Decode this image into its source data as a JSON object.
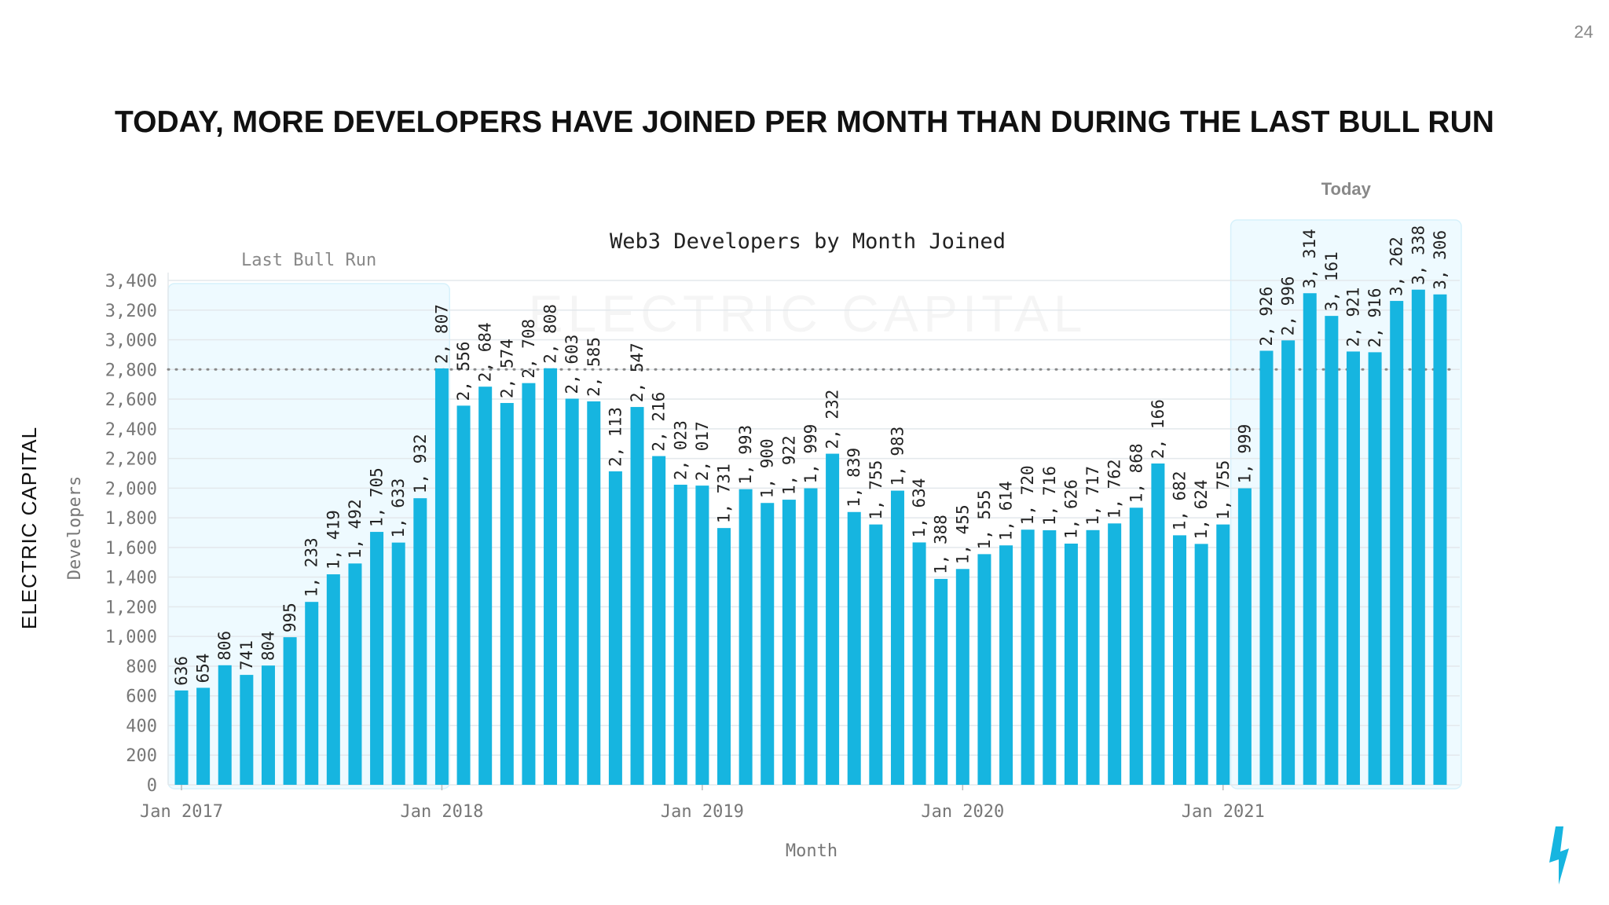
{
  "page_number": "24",
  "headline": "Today, more developers have joined per month than during the last bull run",
  "brand": {
    "logo_text": "ELECTRIC CAPITAL",
    "watermark_text": "ELECTRIC CAPITAL",
    "accent": "#16b5e0",
    "icon": "lightning-bolt-icon"
  },
  "chart_data": {
    "type": "bar",
    "title": "Web3 Developers by Month Joined",
    "xlabel": "Month",
    "ylabel": "Developers",
    "ylim": [
      0,
      3400
    ],
    "yticks": [
      0,
      200,
      400,
      600,
      800,
      1000,
      1200,
      1400,
      1600,
      1800,
      2000,
      2200,
      2400,
      2600,
      2800,
      3000,
      3200,
      3400
    ],
    "xtick_labels": [
      {
        "label": "Jan 2017",
        "index": 0
      },
      {
        "label": "Jan 2018",
        "index": 12
      },
      {
        "label": "Jan 2019",
        "index": 24
      },
      {
        "label": "Jan 2020",
        "index": 36
      },
      {
        "label": "Jan 2021",
        "index": 48
      }
    ],
    "grid": true,
    "bar_color": "#16b5e0",
    "reference_line": {
      "value": 2800,
      "style": "dotted"
    },
    "highlight_regions": [
      {
        "label": "Last Bull Run",
        "start_index": 0,
        "end_index": 12
      },
      {
        "label": "Today",
        "start_index": 49,
        "end_index": 58
      }
    ],
    "categories": [
      "Jan 2017",
      "Feb 2017",
      "Mar 2017",
      "Apr 2017",
      "May 2017",
      "Jun 2017",
      "Jul 2017",
      "Aug 2017",
      "Sep 2017",
      "Oct 2017",
      "Nov 2017",
      "Dec 2017",
      "Jan 2018",
      "Feb 2018",
      "Mar 2018",
      "Apr 2018",
      "May 2018",
      "Jun 2018",
      "Jul 2018",
      "Aug 2018",
      "Sep 2018",
      "Oct 2018",
      "Nov 2018",
      "Dec 2018",
      "Jan 2019",
      "Feb 2019",
      "Mar 2019",
      "Apr 2019",
      "May 2019",
      "Jun 2019",
      "Jul 2019",
      "Aug 2019",
      "Sep 2019",
      "Oct 2019",
      "Nov 2019",
      "Dec 2019",
      "Jan 2020",
      "Feb 2020",
      "Mar 2020",
      "Apr 2020",
      "May 2020",
      "Jun 2020",
      "Jul 2020",
      "Aug 2020",
      "Sep 2020",
      "Oct 2020",
      "Nov 2020",
      "Dec 2020",
      "Jan 2021",
      "Feb 2021",
      "Mar 2021",
      "Apr 2021",
      "May 2021",
      "Jun 2021",
      "Jul 2021",
      "Aug 2021",
      "Sep 2021",
      "Oct 2021",
      "Nov 2021"
    ],
    "values": [
      636,
      654,
      806,
      741,
      804,
      995,
      1233,
      1419,
      1492,
      1705,
      1633,
      1932,
      2807,
      2556,
      2684,
      2574,
      2708,
      2808,
      2603,
      2585,
      2113,
      2547,
      2216,
      2023,
      2017,
      1731,
      1993,
      1900,
      1922,
      1999,
      2232,
      1839,
      1755,
      1983,
      1634,
      1388,
      1455,
      1555,
      1614,
      1720,
      1716,
      1626,
      1717,
      1762,
      1868,
      2166,
      1682,
      1624,
      1755,
      1999,
      2926,
      2996,
      3314,
      3161,
      2921,
      2916,
      3262,
      3338,
      3306
    ]
  }
}
